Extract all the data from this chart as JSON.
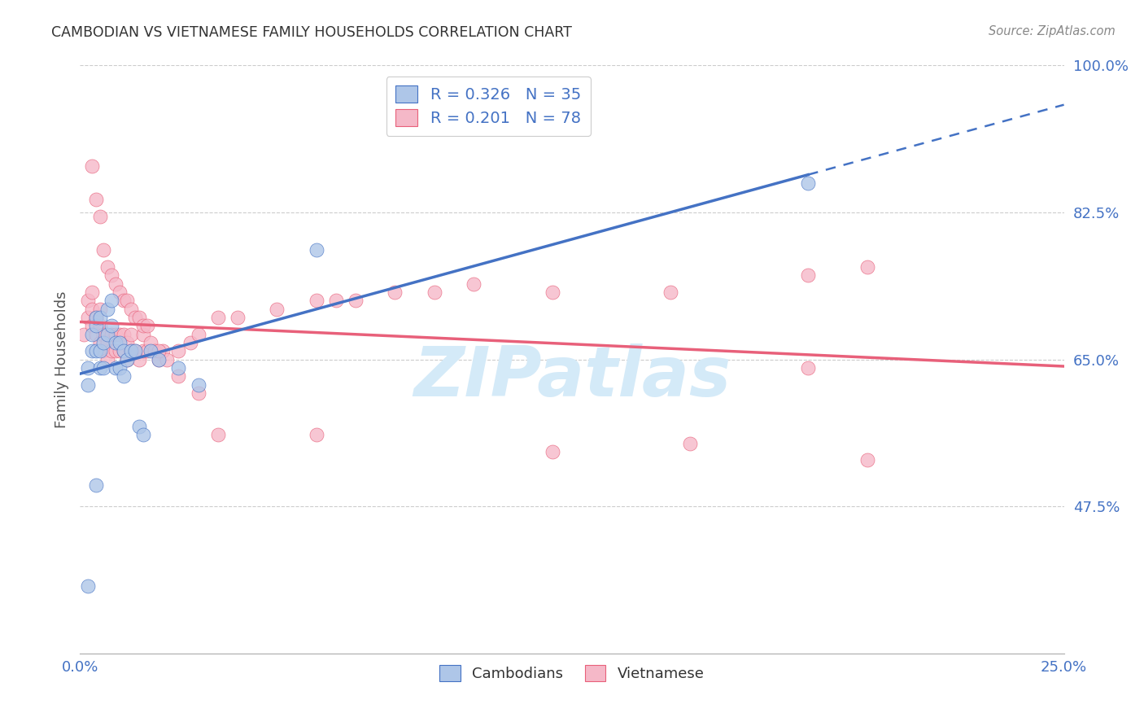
{
  "title": "CAMBODIAN VS VIETNAMESE FAMILY HOUSEHOLDS CORRELATION CHART",
  "source": "Source: ZipAtlas.com",
  "ylabel": "Family Households",
  "x_min": 0.0,
  "x_max": 0.25,
  "y_min": 0.3,
  "y_max": 1.0,
  "x_ticks": [
    0.0,
    0.05,
    0.1,
    0.15,
    0.2,
    0.25
  ],
  "x_tick_labels": [
    "0.0%",
    "",
    "",
    "",
    "",
    "25.0%"
  ],
  "y_ticks": [
    0.475,
    0.65,
    0.825,
    1.0
  ],
  "y_tick_labels": [
    "47.5%",
    "65.0%",
    "82.5%",
    "100.0%"
  ],
  "cambodian_color": "#aec6e8",
  "vietnamese_color": "#f5b8c8",
  "cambodian_edge_color": "#4472c4",
  "vietnamese_edge_color": "#e8607a",
  "cambodian_line_color": "#4472c4",
  "vietnamese_line_color": "#e8607a",
  "grid_color": "#cccccc",
  "background_color": "#ffffff",
  "title_color": "#333333",
  "axis_label_color": "#4472c4",
  "watermark_text": "ZIPatlas",
  "watermark_color": "#d4eaf8",
  "cambodian_x": [
    0.002,
    0.002,
    0.003,
    0.003,
    0.004,
    0.004,
    0.004,
    0.005,
    0.005,
    0.005,
    0.006,
    0.006,
    0.007,
    0.007,
    0.008,
    0.008,
    0.009,
    0.009,
    0.01,
    0.01,
    0.011,
    0.011,
    0.012,
    0.013,
    0.014,
    0.015,
    0.016,
    0.018,
    0.02,
    0.025,
    0.03,
    0.06,
    0.185,
    0.002,
    0.004
  ],
  "cambodian_y": [
    0.62,
    0.64,
    0.66,
    0.68,
    0.66,
    0.69,
    0.7,
    0.64,
    0.66,
    0.7,
    0.64,
    0.67,
    0.68,
    0.71,
    0.69,
    0.72,
    0.64,
    0.67,
    0.64,
    0.67,
    0.63,
    0.66,
    0.65,
    0.66,
    0.66,
    0.57,
    0.56,
    0.66,
    0.65,
    0.64,
    0.62,
    0.78,
    0.86,
    0.38,
    0.5
  ],
  "vietnamese_x": [
    0.001,
    0.002,
    0.002,
    0.003,
    0.003,
    0.003,
    0.004,
    0.004,
    0.005,
    0.005,
    0.005,
    0.006,
    0.006,
    0.007,
    0.007,
    0.008,
    0.008,
    0.009,
    0.009,
    0.01,
    0.01,
    0.011,
    0.011,
    0.012,
    0.012,
    0.013,
    0.013,
    0.014,
    0.015,
    0.016,
    0.016,
    0.017,
    0.018,
    0.019,
    0.02,
    0.021,
    0.022,
    0.025,
    0.028,
    0.03,
    0.035,
    0.04,
    0.05,
    0.06,
    0.065,
    0.07,
    0.08,
    0.09,
    0.1,
    0.12,
    0.15,
    0.185,
    0.2,
    0.003,
    0.004,
    0.005,
    0.006,
    0.007,
    0.008,
    0.009,
    0.01,
    0.011,
    0.012,
    0.013,
    0.014,
    0.015,
    0.016,
    0.017,
    0.02,
    0.025,
    0.03,
    0.035,
    0.06,
    0.12,
    0.155,
    0.185,
    0.2
  ],
  "vietnamese_y": [
    0.68,
    0.7,
    0.72,
    0.69,
    0.71,
    0.73,
    0.68,
    0.7,
    0.67,
    0.69,
    0.71,
    0.66,
    0.68,
    0.65,
    0.67,
    0.66,
    0.68,
    0.66,
    0.68,
    0.66,
    0.68,
    0.66,
    0.68,
    0.65,
    0.67,
    0.66,
    0.68,
    0.66,
    0.65,
    0.66,
    0.68,
    0.66,
    0.67,
    0.66,
    0.65,
    0.66,
    0.65,
    0.66,
    0.67,
    0.68,
    0.7,
    0.7,
    0.71,
    0.72,
    0.72,
    0.72,
    0.73,
    0.73,
    0.74,
    0.73,
    0.73,
    0.75,
    0.76,
    0.88,
    0.84,
    0.82,
    0.78,
    0.76,
    0.75,
    0.74,
    0.73,
    0.72,
    0.72,
    0.71,
    0.7,
    0.7,
    0.69,
    0.69,
    0.66,
    0.63,
    0.61,
    0.56,
    0.56,
    0.54,
    0.55,
    0.64,
    0.53
  ]
}
